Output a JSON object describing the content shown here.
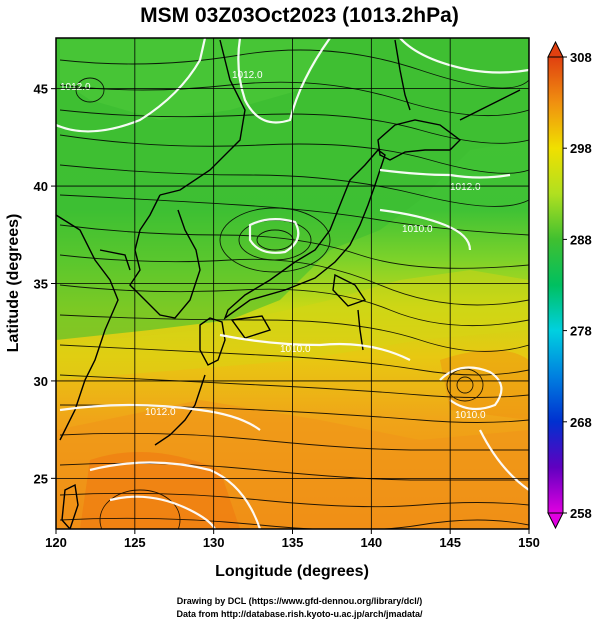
{
  "title": "MSM 03Z03Oct2023 (1013.2hPa)",
  "x_axis": {
    "label": "Longitude (degrees)",
    "ticks": [
      "120",
      "125",
      "130",
      "135",
      "140",
      "145",
      "150"
    ],
    "tick_values": [
      120,
      125,
      130,
      135,
      140,
      145,
      150
    ],
    "range": [
      120,
      150
    ]
  },
  "y_axis": {
    "label": "Latitude  (degrees)",
    "ticks": [
      "25",
      "30",
      "35",
      "40",
      "45"
    ],
    "tick_values": [
      25,
      30,
      35,
      40,
      45
    ],
    "range": [
      22.4,
      47.6
    ]
  },
  "colorbar": {
    "ticks": [
      "258",
      "268",
      "278",
      "288",
      "298",
      "308"
    ],
    "tick_values": [
      258,
      268,
      278,
      288,
      298,
      308
    ],
    "range": [
      258,
      308
    ],
    "colors": [
      "#e000e0",
      "#4000c0",
      "#0040e0",
      "#00a0e0",
      "#00e0d0",
      "#00d080",
      "#40c040",
      "#a0e020",
      "#f0f000",
      "#f0c000",
      "#f08000",
      "#e04000"
    ]
  },
  "isobar_labels": [
    "1012.0",
    "1012.0",
    "1010.0",
    "1010.0",
    "1012.0",
    "1010.0",
    "1012.0"
  ],
  "credits": {
    "line1": "Drawing by DCL (https://www.gfd-dennou.org/library/dcl/)",
    "line2": "Data from http://database.rish.kyoto-u.ac.jp/arch/jmadata/"
  },
  "colors": {
    "land_green": "#3cbe32",
    "sea_green": "#5ad23c",
    "yellow": "#e8d200",
    "orange": "#f09a18",
    "deep_orange": "#f07a10",
    "isobar": "#ffffff",
    "coast": "#000000"
  }
}
